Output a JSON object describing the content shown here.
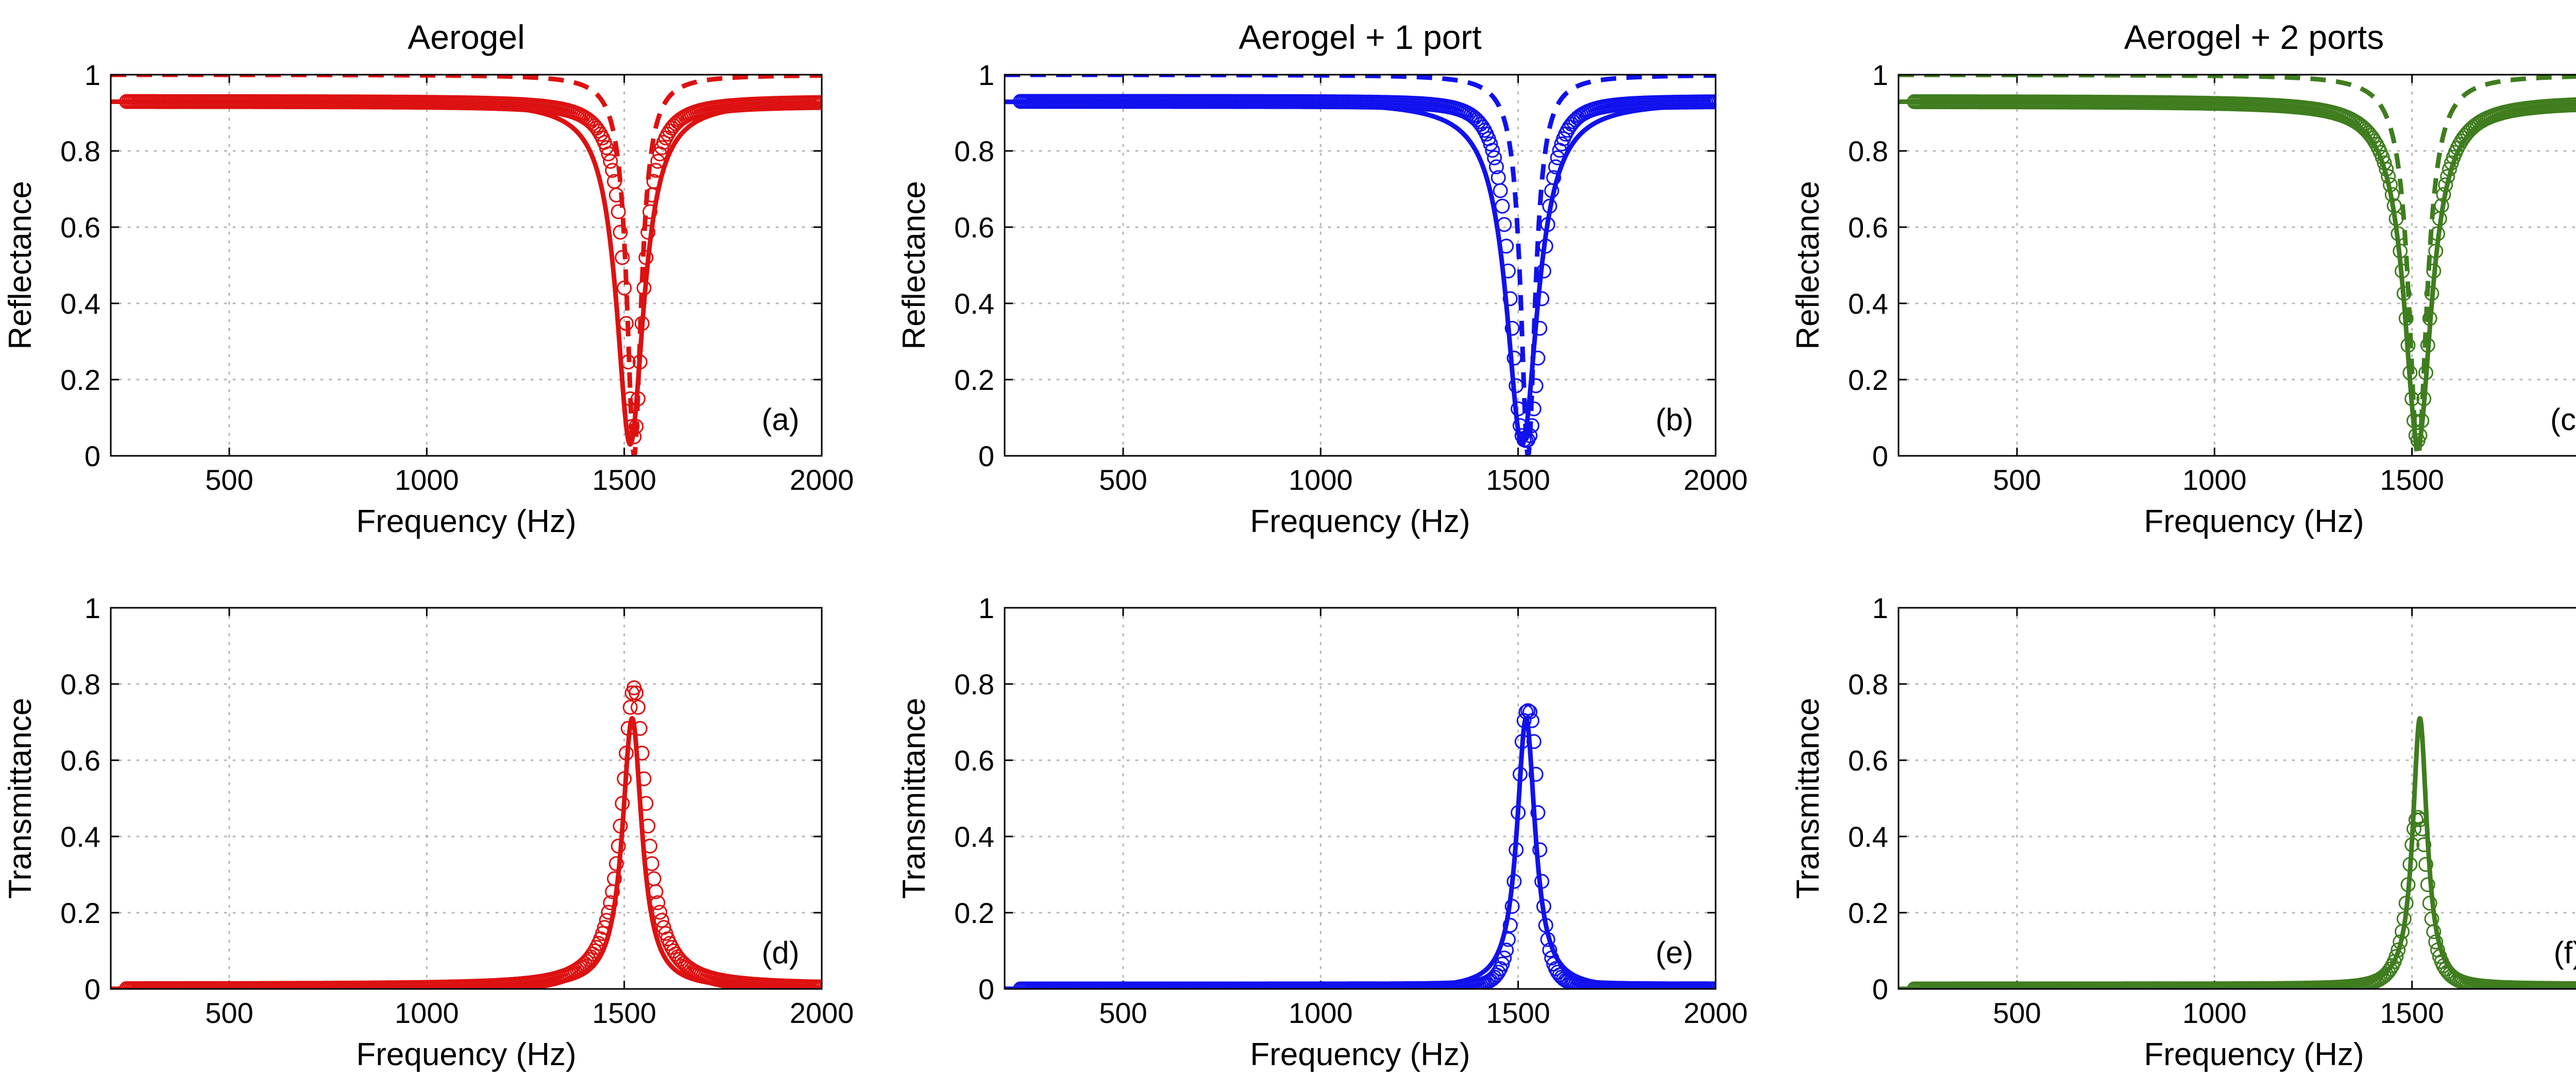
{
  "figure": {
    "xlabel": "Frequency (Hz)",
    "colors": {
      "Aerogel": "#dd1111",
      "Aerogel + 1 port": "#1111ee",
      "Aerogel + 2 ports": "#3f7d1f"
    }
  },
  "chart_data": [
    {
      "type": "line",
      "column": 0,
      "row": 0,
      "title": "Aerogel",
      "label": "(a)",
      "xlabel": "Frequency (Hz)",
      "ylabel": "Reflectance",
      "xlim": [
        200,
        2000
      ],
      "ylim": [
        0,
        1
      ],
      "grid": true,
      "xticks": [
        500,
        1000,
        1500,
        2000
      ],
      "yticks": [
        0,
        0.2,
        0.4,
        0.6,
        0.8,
        1
      ],
      "color": "#dd1111",
      "series": [
        {
          "name": "measured",
          "style": "circles",
          "base": 0.93,
          "f0": 1525,
          "min": 0.05,
          "width": 28,
          "sigma": 1,
          "step": 5
        },
        {
          "name": "model",
          "style": "solid",
          "base": 0.93,
          "f0": 1515,
          "min": 0.03,
          "width": 42,
          "sigma": 1
        },
        {
          "name": "model-lossless",
          "style": "dashed",
          "base": 1.0,
          "f0": 1525,
          "min": 0.0,
          "width": 22,
          "sigma": 1
        }
      ]
    },
    {
      "type": "line",
      "column": 1,
      "row": 0,
      "title": "Aerogel + 1 port",
      "label": "(b)",
      "xlabel": "Frequency (Hz)",
      "ylabel": "Reflectance",
      "xlim": [
        200,
        2000
      ],
      "ylim": [
        0,
        1
      ],
      "grid": true,
      "xticks": [
        500,
        1000,
        1500,
        2000
      ],
      "yticks": [
        0,
        0.2,
        0.4,
        0.6,
        0.8,
        1
      ],
      "color": "#1111ee",
      "series": [
        {
          "name": "measured",
          "style": "circles",
          "base": 0.93,
          "f0": 1520,
          "min": 0.04,
          "width": 45,
          "sigma": 1.4,
          "step": 5
        },
        {
          "name": "model",
          "style": "solid",
          "base": 0.93,
          "f0": 1510,
          "min": 0.03,
          "width": 48,
          "sigma": 1
        },
        {
          "name": "model-lossless",
          "style": "dashed",
          "base": 1.0,
          "f0": 1525,
          "min": 0.0,
          "width": 22,
          "sigma": 1
        }
      ]
    },
    {
      "type": "line",
      "column": 2,
      "row": 0,
      "title": "Aerogel + 2 ports",
      "label": "(c)",
      "xlabel": "Frequency (Hz)",
      "ylabel": "Reflectance",
      "xlim": [
        200,
        2000
      ],
      "ylim": [
        0,
        1
      ],
      "grid": true,
      "xticks": [
        500,
        1000,
        1500,
        2000
      ],
      "yticks": [
        0,
        0.2,
        0.4,
        0.6,
        0.8,
        1
      ],
      "color": "#3f7d1f",
      "series": [
        {
          "name": "measured",
          "style": "circles",
          "base": 0.93,
          "f0": 1515,
          "min": 0.04,
          "width": 40,
          "sigma": 1,
          "step": 5
        },
        {
          "name": "model",
          "style": "solid",
          "base": 0.93,
          "f0": 1515,
          "min": 0.03,
          "width": 42,
          "sigma": 1
        },
        {
          "name": "model-lossless",
          "style": "dashed",
          "base": 1.0,
          "f0": 1515,
          "min": 0.0,
          "width": 28,
          "sigma": 1
        }
      ]
    },
    {
      "type": "line",
      "column": 0,
      "row": 1,
      "title": "",
      "label": "(d)",
      "xlabel": "Frequency (Hz)",
      "ylabel": "Transmittance",
      "xlim": [
        200,
        2000
      ],
      "ylim": [
        0,
        1
      ],
      "grid": true,
      "xticks": [
        500,
        1000,
        1500,
        2000
      ],
      "yticks": [
        0,
        0.2,
        0.4,
        0.6,
        0.8,
        1
      ],
      "color": "#dd1111",
      "series": [
        {
          "name": "measured",
          "style": "circles",
          "base": 0.0,
          "f0": 1525,
          "peak": 0.79,
          "width": 38,
          "sigma": 1,
          "step": 5
        },
        {
          "name": "model",
          "style": "solid",
          "base": 0.0,
          "f0": 1520,
          "peak": 0.71,
          "width": 30,
          "sigma": 1
        }
      ]
    },
    {
      "type": "line",
      "column": 1,
      "row": 1,
      "title": "",
      "label": "(e)",
      "xlabel": "Frequency (Hz)",
      "ylabel": "Transmittance",
      "xlim": [
        200,
        2000
      ],
      "ylim": [
        0,
        1
      ],
      "grid": true,
      "xticks": [
        500,
        1000,
        1500,
        2000
      ],
      "yticks": [
        0,
        0.2,
        0.4,
        0.6,
        0.8,
        1
      ],
      "color": "#1111ee",
      "series": [
        {
          "name": "measured",
          "style": "circles",
          "base": 0.0,
          "f0": 1525,
          "peak": 0.73,
          "width": 30,
          "sigma": 1.5,
          "step": 5
        },
        {
          "name": "model",
          "style": "solid",
          "base": 0.0,
          "f0": 1520,
          "peak": 0.71,
          "width": 28,
          "sigma": 1
        }
      ]
    },
    {
      "type": "line",
      "column": 2,
      "row": 1,
      "title": "",
      "label": "(f)",
      "xlabel": "Frequency (Hz)",
      "ylabel": "Transmittance",
      "xlim": [
        200,
        2000
      ],
      "ylim": [
        0,
        1
      ],
      "grid": true,
      "xticks": [
        500,
        1000,
        1500,
        2000
      ],
      "yticks": [
        0,
        0.2,
        0.4,
        0.6,
        0.8,
        1
      ],
      "color": "#3f7d1f",
      "series": [
        {
          "name": "measured",
          "style": "circles",
          "base": 0.0,
          "f0": 1515,
          "peak": 0.45,
          "width": 30,
          "sigma": 1.2,
          "step": 5
        },
        {
          "name": "model",
          "style": "solid",
          "base": 0.0,
          "f0": 1520,
          "peak": 0.71,
          "width": 22,
          "sigma": 1
        }
      ]
    }
  ]
}
